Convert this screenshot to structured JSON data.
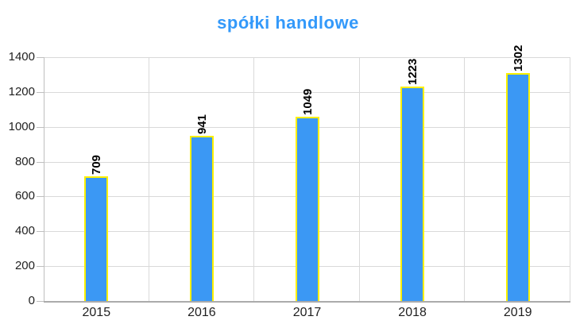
{
  "chart_data": {
    "type": "bar",
    "title": "spółki handlowe",
    "categories": [
      "2015",
      "2016",
      "2017",
      "2018",
      "2019"
    ],
    "values": [
      709,
      941,
      1049,
      1223,
      1302
    ],
    "xlabel": "",
    "ylabel": "",
    "ylim": [
      0,
      1400
    ],
    "yticks": [
      0,
      200,
      400,
      600,
      800,
      1000,
      1200,
      1400
    ],
    "grid": true,
    "legend": false,
    "value_label_rotation": "90deg-bottom-to-top",
    "colors": {
      "title": "#3399fa",
      "bar_fill": "#3b98f4",
      "bar_border": "#fdf000",
      "gridline": "#d9d9d9",
      "category_separator": "#d9d9d9",
      "axis_line": "#bfbfbf",
      "baseline": "#ababab",
      "tick": "#bfbfbf",
      "axis_text": "#1f1f1f",
      "value_text": "#000000"
    }
  }
}
